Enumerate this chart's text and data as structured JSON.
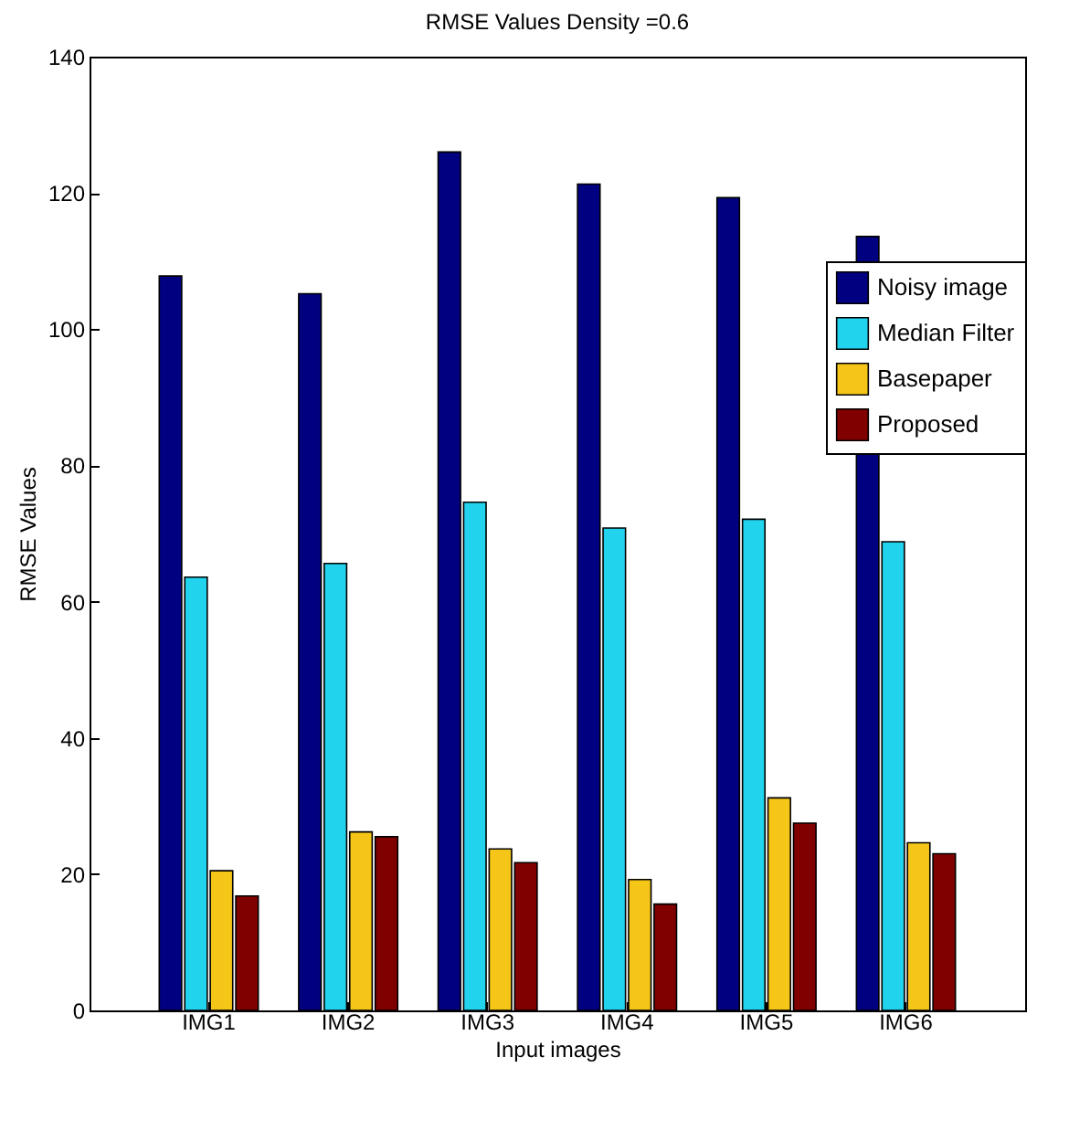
{
  "chart_data": {
    "type": "bar",
    "title": "RMSE Values Density =0.6",
    "xlabel": "Input images",
    "ylabel": "RMSE Values",
    "categories": [
      "IMG1",
      "IMG2",
      "IMG3",
      "IMG4",
      "IMG5",
      "IMG6"
    ],
    "series": [
      {
        "name": "Noisy image",
        "color": "#000080",
        "values": [
          107.8,
          105.2,
          126,
          121.3,
          119.3,
          113.6
        ]
      },
      {
        "name": "Median Filter",
        "color": "#22d3ee",
        "values": [
          63.6,
          65.6,
          74.6,
          70.8,
          72.1,
          68.8
        ]
      },
      {
        "name": "Basepaper",
        "color": "#f5c518",
        "values": [
          20.5,
          26.2,
          23.7,
          19.2,
          31.2,
          24.6
        ]
      },
      {
        "name": "Proposed",
        "color": "#800000",
        "values": [
          16.8,
          25.5,
          21.7,
          15.6,
          27.5,
          23.0
        ]
      }
    ],
    "ylim": [
      0,
      140
    ],
    "yticks": [
      0,
      20,
      40,
      60,
      80,
      100,
      120,
      140
    ],
    "grid": false,
    "legend": "top right"
  }
}
